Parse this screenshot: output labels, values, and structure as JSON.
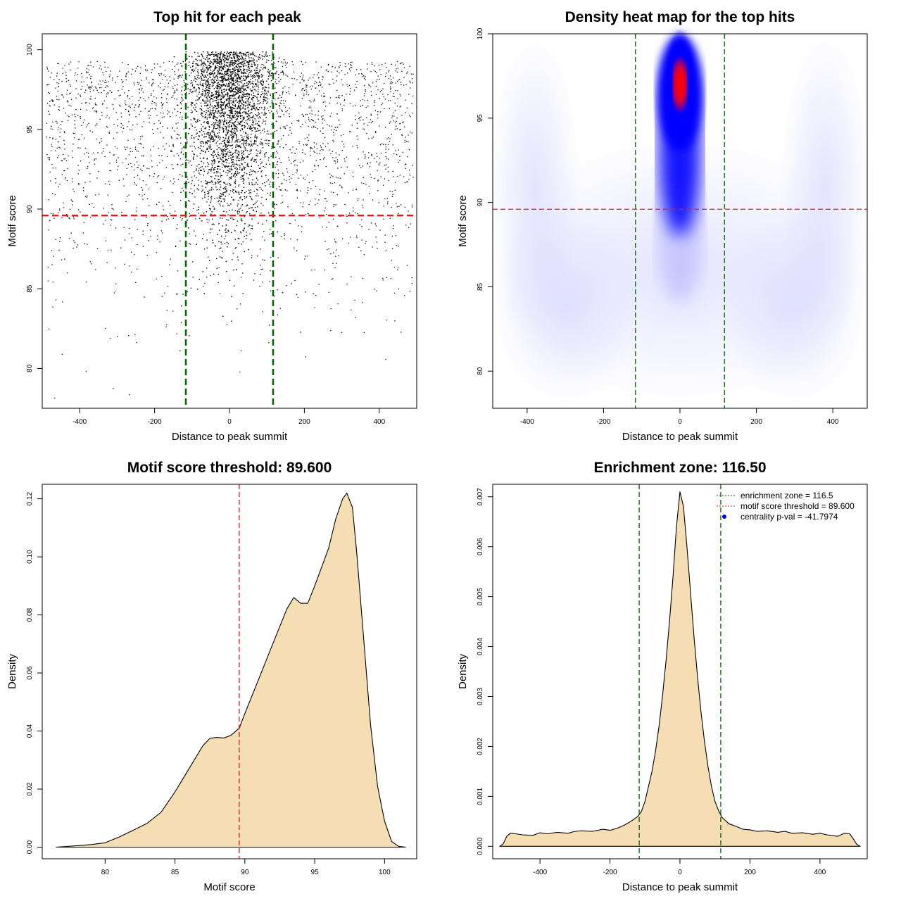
{
  "chart_data": [
    {
      "id": "scatter",
      "type": "scatter",
      "title": "Top hit for each peak",
      "xlabel": "Distance to peak summit",
      "ylabel": "Motif score",
      "xlim": [
        -500,
        500
      ],
      "ylim": [
        77.5,
        101
      ],
      "xticks": [
        -400,
        -200,
        0,
        200,
        400
      ],
      "yticks": [
        80,
        85,
        90,
        95,
        100
      ],
      "vlines": [
        -116.5,
        116.5
      ],
      "hline": 89.6,
      "vline_color": "#006400",
      "hline_color": "#e41a1c",
      "point_color": "#000000",
      "points_description_note": "dense cluster of points within ~±120 of summit at scores 86-100; sparse uniform background elsewhere"
    },
    {
      "id": "heatmap",
      "type": "heatmap",
      "title": "Density heat map for the top hits",
      "xlabel": "Distance to peak summit",
      "ylabel": "Motif score",
      "xlim": [
        -490,
        490
      ],
      "ylim": [
        77.8,
        100
      ],
      "xticks": [
        -400,
        -200,
        0,
        200,
        400
      ],
      "yticks": [
        80,
        85,
        90,
        95,
        100
      ],
      "vlines": [
        -116.5,
        116.5
      ],
      "hline": 89.6,
      "peak": {
        "x": 0,
        "y": 97.0
      },
      "color_scale": [
        "#ffffff",
        "#0000ff",
        "#ff0000"
      ]
    },
    {
      "id": "score-density",
      "type": "area",
      "title": "Motif score threshold: 89.600",
      "xlabel": "Motif score",
      "ylabel": "Density",
      "xlim": [
        75.5,
        102.3
      ],
      "ylim": [
        -0.004,
        0.125
      ],
      "xticks": [
        80,
        85,
        90,
        95,
        100
      ],
      "yticks": [
        0.0,
        0.02,
        0.04,
        0.06,
        0.08,
        0.1,
        0.12
      ],
      "ytick_labels": [
        "0.00",
        "0.02",
        "0.04",
        "0.06",
        "0.08",
        "0.10",
        "0.12"
      ],
      "vline": 89.6,
      "x": [
        76.5,
        78,
        79,
        80,
        81,
        82,
        83,
        84,
        85,
        86,
        87,
        87.5,
        88,
        88.5,
        89,
        89.6,
        90,
        91,
        92,
        93,
        93.5,
        94,
        94.5,
        95,
        96,
        96.5,
        97,
        97.3,
        97.7,
        98,
        98.5,
        99,
        99.5,
        100,
        100.5,
        101,
        101.5
      ],
      "y": [
        0.0,
        0.0005,
        0.0009,
        0.0015,
        0.0035,
        0.0058,
        0.0082,
        0.012,
        0.019,
        0.027,
        0.035,
        0.0375,
        0.0378,
        0.0376,
        0.0385,
        0.041,
        0.046,
        0.058,
        0.07,
        0.082,
        0.086,
        0.084,
        0.084,
        0.09,
        0.103,
        0.113,
        0.12,
        0.122,
        0.117,
        0.102,
        0.072,
        0.042,
        0.021,
        0.009,
        0.002,
        0.0003,
        0.0
      ],
      "fill_color": "#f5deb3",
      "vline_color": "#e41a1c"
    },
    {
      "id": "position-density",
      "type": "area",
      "title": "Enrichment zone: 116.50",
      "xlabel": "Distance to peak summit",
      "ylabel": "Density",
      "xlim": [
        -535,
        535
      ],
      "ylim": [
        -0.00025,
        0.00725
      ],
      "xticks": [
        -400,
        -200,
        0,
        200,
        400
      ],
      "yticks": [
        0.0,
        0.001,
        0.002,
        0.003,
        0.004,
        0.005,
        0.006,
        0.007
      ],
      "ytick_labels": [
        "0.000",
        "0.001",
        "0.002",
        "0.003",
        "0.004",
        "0.005",
        "0.006",
        "0.007"
      ],
      "vlines": [
        -116.5,
        116.5
      ],
      "x": [
        -515,
        -505,
        -495,
        -485,
        -470,
        -450,
        -420,
        -400,
        -380,
        -350,
        -320,
        -300,
        -280,
        -250,
        -220,
        -200,
        -180,
        -160,
        -140,
        -120,
        -110,
        -100,
        -90,
        -80,
        -70,
        -60,
        -50,
        -40,
        -30,
        -20,
        -10,
        0,
        10,
        20,
        30,
        40,
        50,
        60,
        70,
        80,
        90,
        100,
        110,
        120,
        140,
        160,
        180,
        200,
        220,
        250,
        280,
        300,
        320,
        350,
        380,
        400,
        420,
        450,
        470,
        485,
        495,
        505,
        515
      ],
      "y": [
        0.0,
        5e-05,
        0.0002,
        0.00026,
        0.00025,
        0.00023,
        0.00022,
        0.00027,
        0.00025,
        0.00028,
        0.00026,
        0.0003,
        0.00031,
        0.0003,
        0.00034,
        0.00032,
        0.00036,
        0.00042,
        0.0005,
        0.0006,
        0.0007,
        0.0009,
        0.0012,
        0.0015,
        0.0019,
        0.0024,
        0.003,
        0.0037,
        0.0045,
        0.0054,
        0.0064,
        0.0071,
        0.0068,
        0.006,
        0.0051,
        0.0042,
        0.0034,
        0.0027,
        0.0021,
        0.0016,
        0.0012,
        0.0009,
        0.00072,
        0.00058,
        0.00045,
        0.0004,
        0.00034,
        0.00033,
        0.0003,
        0.00031,
        0.00028,
        0.0003,
        0.00026,
        0.00027,
        0.00024,
        0.00026,
        0.00023,
        0.0002,
        0.00026,
        0.00025,
        0.00015,
        4e-05,
        0.0
      ],
      "fill_color": "#f5deb3",
      "legend": {
        "position": "top-right",
        "entries": [
          {
            "label": "enrichment zone = 116.5",
            "style": "dotted-line",
            "color": "#006400"
          },
          {
            "label": "motif score threshold = 89.600",
            "style": "dotted-line",
            "color": "#e41a1c"
          },
          {
            "label": "centrality p-val = -41.7974",
            "style": "dot",
            "color": "#0000ff"
          }
        ]
      }
    }
  ]
}
